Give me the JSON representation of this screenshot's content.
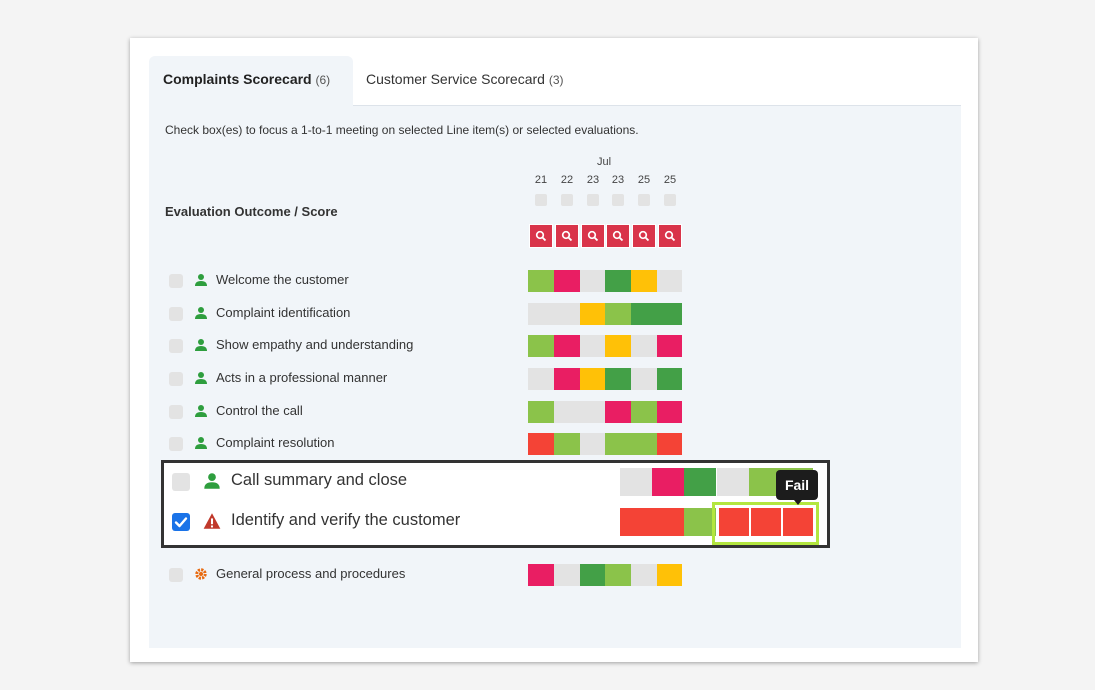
{
  "colors": {
    "light_green": "#8bc34a",
    "green": "#43a047",
    "pink": "#e91e63",
    "yellow": "#ffc107",
    "red": "#f44336",
    "grey": "#e3e3e3",
    "header_red": "#d9344a",
    "highlight_green": "#b3e63f"
  },
  "tabs": [
    {
      "label": "Complaints Scorecard",
      "count": "(6)",
      "active": true
    },
    {
      "label": "Customer Service Scorecard",
      "count": "(3)",
      "active": false
    }
  ],
  "instructions": "Check box(es) to focus a 1-to-1 meeting on selected Line item(s) or selected evaluations.",
  "month": "Jul",
  "dates": [
    "21",
    "22",
    "23",
    "23",
    "25",
    "25"
  ],
  "outcome_title": "Evaluation Outcome / Score",
  "rows": [
    {
      "label": "Welcome the customer",
      "icon": "person-icon",
      "checked": false,
      "cells": [
        "light_green",
        "pink",
        "grey",
        "green",
        "yellow",
        "grey"
      ]
    },
    {
      "label": "Complaint identification",
      "icon": "person-icon",
      "checked": false,
      "cells": [
        "grey",
        "grey",
        "yellow",
        "light_green",
        "green",
        "green"
      ]
    },
    {
      "label": "Show empathy and understanding",
      "icon": "person-icon",
      "checked": false,
      "cells": [
        "light_green",
        "pink",
        "grey",
        "yellow",
        "grey",
        "pink"
      ]
    },
    {
      "label": "Acts in a professional manner",
      "icon": "person-icon",
      "checked": false,
      "cells": [
        "grey",
        "pink",
        "yellow",
        "green",
        "grey",
        "green"
      ]
    },
    {
      "label": "Control the call",
      "icon": "person-icon",
      "checked": false,
      "cells": [
        "light_green",
        "grey",
        "grey",
        "pink",
        "light_green",
        "pink"
      ]
    },
    {
      "label": "Complaint resolution",
      "icon": "person-icon",
      "checked": false,
      "cells": [
        "red",
        "light_green",
        "grey",
        "light_green",
        "light_green",
        "red"
      ]
    },
    {
      "label": "General process and procedures",
      "icon": "gear-icon",
      "checked": false,
      "cells": [
        "pink",
        "grey",
        "green",
        "light_green",
        "grey",
        "yellow"
      ]
    }
  ],
  "zoom_rows": [
    {
      "label": "Call summary and close",
      "icon": "person-icon",
      "checked": false,
      "cells": [
        "grey",
        "pink",
        "green",
        "grey",
        "light_green",
        "light_green"
      ]
    },
    {
      "label": "Identify and verify the customer",
      "icon": "warning-icon",
      "checked": true,
      "cells": [
        "red",
        "red",
        "light_green",
        "red",
        "red",
        "red"
      ]
    }
  ],
  "tooltip": "Fail"
}
